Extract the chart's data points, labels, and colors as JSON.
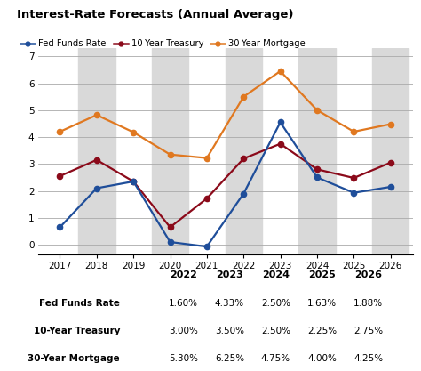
{
  "title": "Interest-Rate Forecasts (Annual Average)",
  "years": [
    2017,
    2018,
    2019,
    2020,
    2021,
    2022,
    2023,
    2024,
    2025,
    2026
  ],
  "fed_funds": [
    0.65,
    2.1,
    2.35,
    0.1,
    -0.07,
    1.9,
    4.55,
    2.5,
    1.93,
    2.15
  ],
  "treasury_10": [
    2.55,
    3.15,
    2.35,
    0.65,
    1.72,
    3.2,
    3.75,
    2.8,
    2.48,
    3.05
  ],
  "mortgage_30": [
    4.2,
    4.82,
    4.18,
    3.35,
    3.22,
    5.5,
    6.45,
    5.0,
    4.2,
    4.48
  ],
  "fed_color": "#1f4e9a",
  "treasury_color": "#8b0a1a",
  "mortgage_color": "#e07820",
  "background_color": "#ffffff",
  "shade_color": "#d9d9d9",
  "shade_years": [
    2018,
    2020,
    2022,
    2024,
    2026
  ],
  "ylim": [
    -0.35,
    7.3
  ],
  "yticks": [
    0,
    1,
    2,
    3,
    4,
    5,
    6,
    7
  ],
  "xlim": [
    2016.4,
    2026.6
  ],
  "legend_labels": [
    "Fed Funds Rate",
    "10-Year Treasury",
    "30-Year Mortgage"
  ],
  "table_years": [
    "2022",
    "2023",
    "2024",
    "2025",
    "2026"
  ],
  "table_labels": [
    "Fed Funds Rate",
    "10-Year Treasury",
    "30-Year Mortgage"
  ],
  "table_data": [
    [
      "1.60%",
      "4.33%",
      "2.50%",
      "1.63%",
      "1.88%"
    ],
    [
      "3.00%",
      "3.50%",
      "2.50%",
      "2.25%",
      "2.75%"
    ],
    [
      "5.30%",
      "6.25%",
      "4.75%",
      "4.00%",
      "4.25%"
    ]
  ]
}
